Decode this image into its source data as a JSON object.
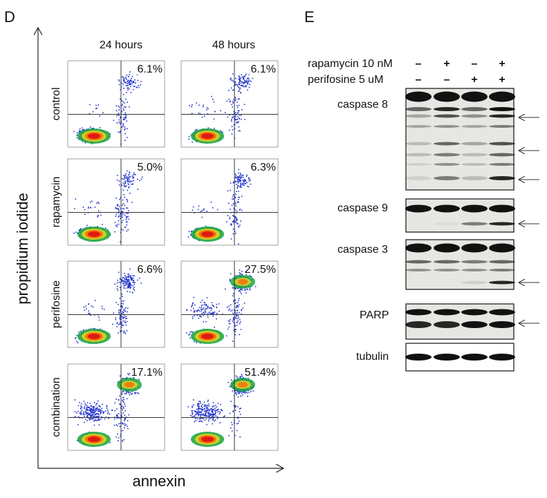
{
  "panel_d": {
    "label": "D",
    "y_axis_label": "propidium iodide",
    "x_axis_label": "annexin",
    "columns": [
      "24 hours",
      "48 hours"
    ],
    "rows": [
      {
        "label": "control",
        "values": [
          "6.1%",
          "6.1%"
        ]
      },
      {
        "label": "rapamycin",
        "values": [
          "5.0%",
          "6.3%"
        ]
      },
      {
        "label": "perifosine",
        "values": [
          "6.6%",
          "27.5%"
        ]
      },
      {
        "label": "combination",
        "values": [
          "17.1%",
          "51.4%"
        ]
      }
    ]
  },
  "panel_e": {
    "label": "E",
    "treatments": [
      {
        "label": "rapamycin 10 nM",
        "signs": [
          "–",
          "+",
          "–",
          "+"
        ]
      },
      {
        "label": "perifosine 5 uM",
        "signs": [
          "–",
          "–",
          "+",
          "+"
        ]
      }
    ],
    "blots": [
      "caspase 8",
      "caspase 9",
      "caspase 3",
      "PARP",
      "tubulin"
    ]
  }
}
